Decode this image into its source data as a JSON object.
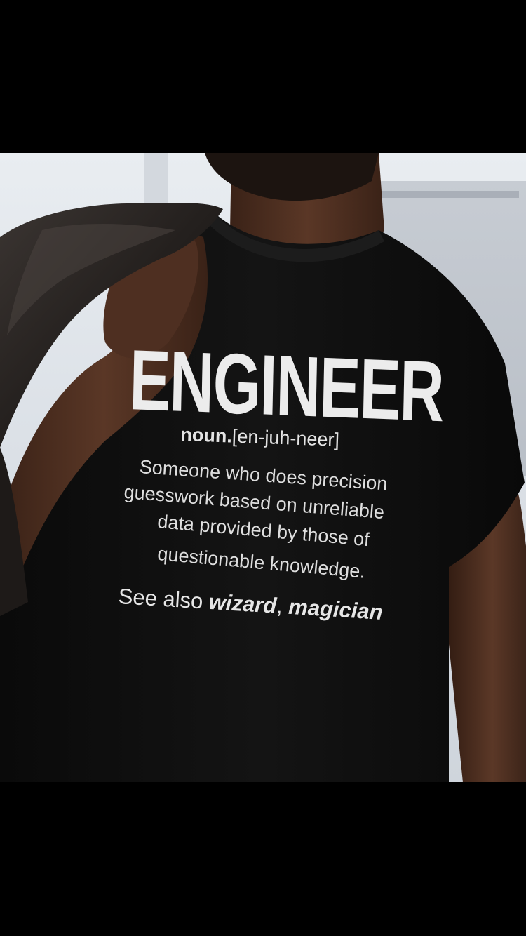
{
  "shirt": {
    "headline": "ENGINEER",
    "pos": "noun.",
    "pronunciation": "[en-juh-neer]",
    "definition_lines": [
      "Someone who does precision",
      "guesswork based on unreliable",
      "data provided by those of",
      "questionable knowledge."
    ],
    "see_also_prefix": "See also ",
    "see_also_term_1": "wizard",
    "see_also_separator": ", ",
    "see_also_term_2": "magician"
  },
  "colors": {
    "letterbox": "#000000",
    "shirt": "#0d0d0d",
    "print": "#e8e8e8",
    "skin": "#4a2c1e",
    "jacket": "#2b2624"
  }
}
